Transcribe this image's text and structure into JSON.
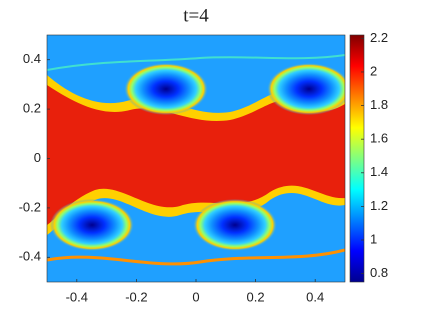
{
  "chart_data": {
    "type": "heatmap",
    "title": "t=4",
    "colormap": "jet",
    "xlim": [
      -0.5,
      0.5
    ],
    "xticks": [
      -0.4,
      -0.2,
      0,
      0.2,
      0.4
    ],
    "ylim": [
      -0.5,
      0.5
    ],
    "yticks": [
      -0.4,
      -0.2,
      0,
      0.2,
      0.4
    ],
    "clim": [
      0.75,
      2.22
    ],
    "cticks": [
      0.8,
      1,
      1.2,
      1.4,
      1.6,
      1.8,
      2,
      2.2
    ]
  }
}
